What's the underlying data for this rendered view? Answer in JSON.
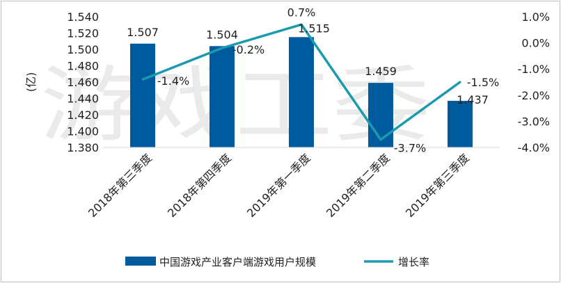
{
  "chart_data": {
    "type": "bar",
    "categories": [
      "2018年第三季度",
      "2018年第四季度",
      "2019年第一季度",
      "2019年第二季度",
      "2019年第三季度"
    ],
    "series": [
      {
        "name": "中国游戏产业客户端游戏用户规模",
        "type": "bar",
        "axis": "left",
        "values": [
          1.507,
          1.504,
          1.515,
          1.459,
          1.437
        ],
        "labels": [
          "1.507",
          "1.504",
          "1.515",
          "1.459",
          "1.437"
        ],
        "color": "#005a9e"
      },
      {
        "name": "增长率",
        "type": "line",
        "axis": "right",
        "values": [
          -1.4,
          -0.2,
          0.7,
          -3.7,
          -1.5
        ],
        "labels": [
          "-1.4%",
          "-0.2%",
          "0.7%",
          "-3.7%",
          "-1.5%"
        ],
        "color": "#1b9aaf"
      }
    ],
    "ylabel": "(亿)",
    "ylim": [
      1.38,
      1.54
    ],
    "yticks": [
      "1.380",
      "1.400",
      "1.420",
      "1.440",
      "1.460",
      "1.480",
      "1.500",
      "1.520",
      "1.540"
    ],
    "y2lim": [
      -4.0,
      1.0
    ],
    "y2ticks": [
      "-4.0%",
      "-3.0%",
      "-2.0%",
      "-1.0%",
      "0.0%",
      "1.0%"
    ],
    "legend_position": "bottom",
    "grid": false,
    "watermark": "游戏工委"
  }
}
